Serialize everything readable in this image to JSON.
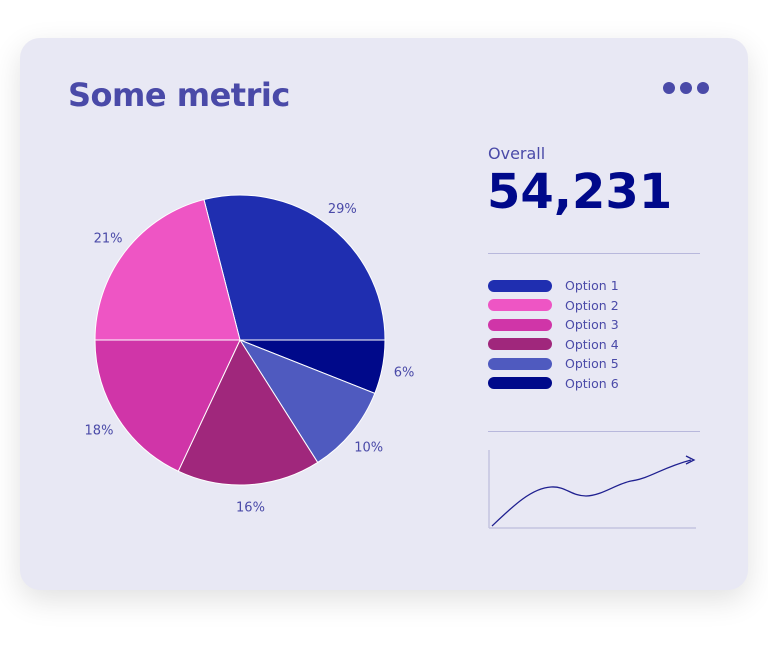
{
  "header": {
    "title": "Some metric",
    "menu_icon": "more-horizontal-icon"
  },
  "summary": {
    "label": "Overall",
    "value": "54,231"
  },
  "chart_data": {
    "type": "pie",
    "categories": [
      "Option 1",
      "Option 6",
      "Option 5",
      "Option 4",
      "Option 3",
      "Option 2"
    ],
    "values": [
      29,
      6,
      10,
      16,
      18,
      21
    ],
    "data_labels": [
      "29%",
      "6%",
      "10%",
      "16%",
      "18%",
      "21%"
    ],
    "colors": [
      "#1f2eb0",
      "#00098a",
      "#4f5abf",
      "#a0277c",
      "#d035a8",
      "#ee55c4"
    ],
    "legend_placement": "right"
  },
  "legend": [
    {
      "label": "Option 1",
      "color": "#1f2eb0"
    },
    {
      "label": "Option 2",
      "color": "#ee55c4"
    },
    {
      "label": "Option 3",
      "color": "#d035a8"
    },
    {
      "label": "Option 4",
      "color": "#a0277c"
    },
    {
      "label": "Option 5",
      "color": "#4f5abf"
    },
    {
      "label": "Option 6",
      "color": "#00098a"
    }
  ]
}
